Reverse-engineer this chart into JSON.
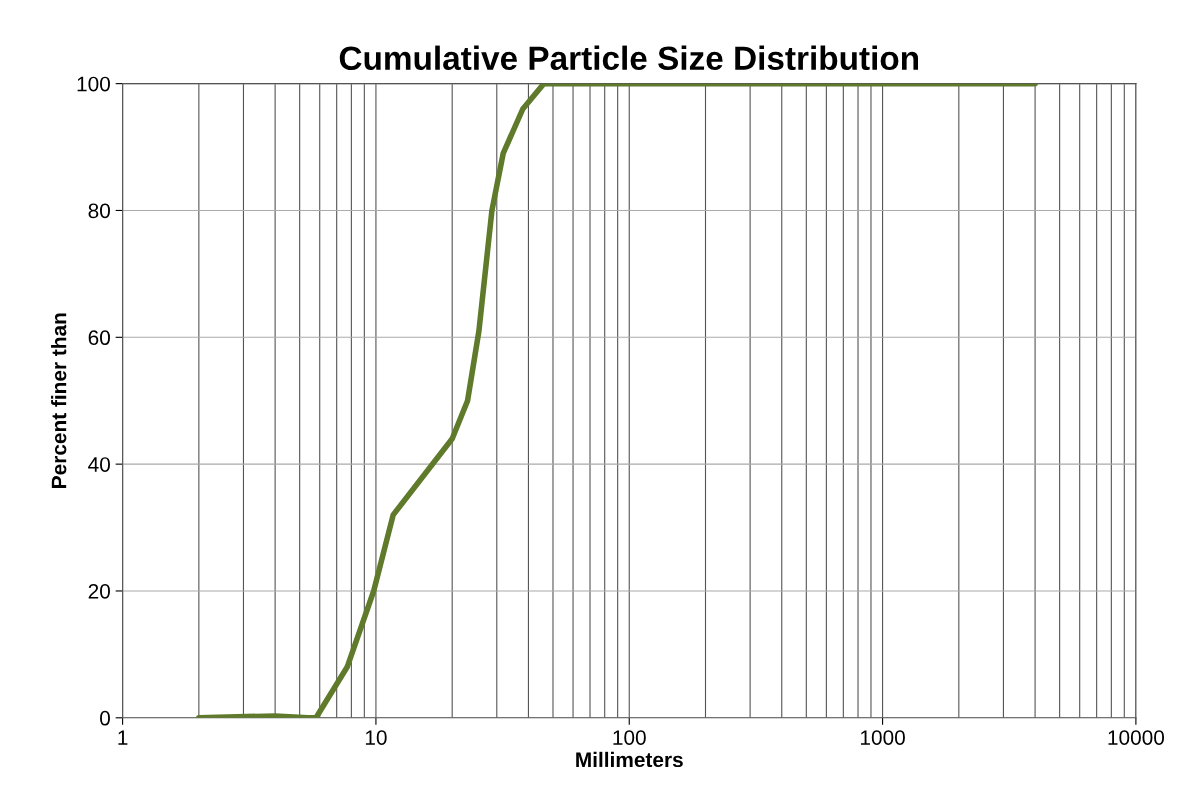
{
  "chart_data": {
    "type": "line",
    "title": "Cumulative Particle Size Distribution",
    "xlabel": "Millimeters",
    "ylabel": "Percent finer than",
    "x": [
      2,
      4,
      5.4,
      5.8,
      7.7,
      9.8,
      11.7,
      20,
      23,
      25.5,
      28.7,
      31.8,
      38,
      46,
      100,
      1000,
      4000
    ],
    "series": [
      {
        "color": "#5f7a2a",
        "values": [
          0,
          0.3,
          0,
          0,
          8,
          20,
          32,
          44,
          50,
          61,
          80,
          89,
          96,
          100,
          100,
          100,
          100
        ]
      }
    ],
    "log": "x",
    "xlim": [
      1,
      10000
    ],
    "xticks": [
      1,
      10,
      100,
      1000,
      10000
    ],
    "ylim": [
      0,
      100
    ],
    "yticks": [
      0,
      20,
      40,
      60,
      80,
      100
    ],
    "grid": true,
    "marker": "none",
    "line_style": "solid"
  }
}
